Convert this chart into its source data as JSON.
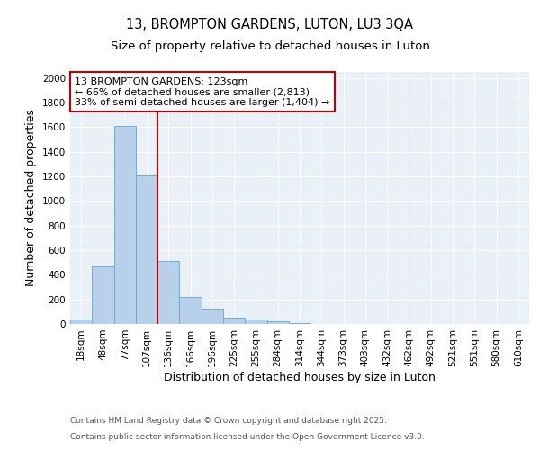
{
  "title_line1": "13, BROMPTON GARDENS, LUTON, LU3 3QA",
  "title_line2": "Size of property relative to detached houses in Luton",
  "xlabel": "Distribution of detached houses by size in Luton",
  "ylabel": "Number of detached properties",
  "categories": [
    "18sqm",
    "48sqm",
    "77sqm",
    "107sqm",
    "136sqm",
    "166sqm",
    "196sqm",
    "225sqm",
    "255sqm",
    "284sqm",
    "314sqm",
    "344sqm",
    "373sqm",
    "403sqm",
    "432sqm",
    "462sqm",
    "492sqm",
    "521sqm",
    "551sqm",
    "580sqm",
    "610sqm"
  ],
  "values": [
    35,
    465,
    1610,
    1210,
    510,
    220,
    125,
    50,
    35,
    20,
    10,
    0,
    0,
    0,
    0,
    0,
    0,
    0,
    0,
    0,
    0
  ],
  "bar_color": "#b8d0ea",
  "bar_edge_color": "#6aaed6",
  "vline_color": "#c00000",
  "annotation_text": "13 BROMPTON GARDENS: 123sqm\n← 66% of detached houses are smaller (2,813)\n33% of semi-detached houses are larger (1,404) →",
  "annotation_box_color": "#ffffff",
  "annotation_box_edge_color": "#c00000",
  "ylim": [
    0,
    2050
  ],
  "yticks": [
    0,
    200,
    400,
    600,
    800,
    1000,
    1200,
    1400,
    1600,
    1800,
    2000
  ],
  "footer_line1": "Contains HM Land Registry data © Crown copyright and database right 2025.",
  "footer_line2": "Contains public sector information licensed under the Open Government Licence v3.0.",
  "background_color": "#eaf0f8",
  "grid_color": "#ffffff",
  "title_fontsize": 10.5,
  "subtitle_fontsize": 9.5,
  "axis_label_fontsize": 9,
  "tick_fontsize": 7.5,
  "annotation_fontsize": 8,
  "footer_fontsize": 6.5
}
